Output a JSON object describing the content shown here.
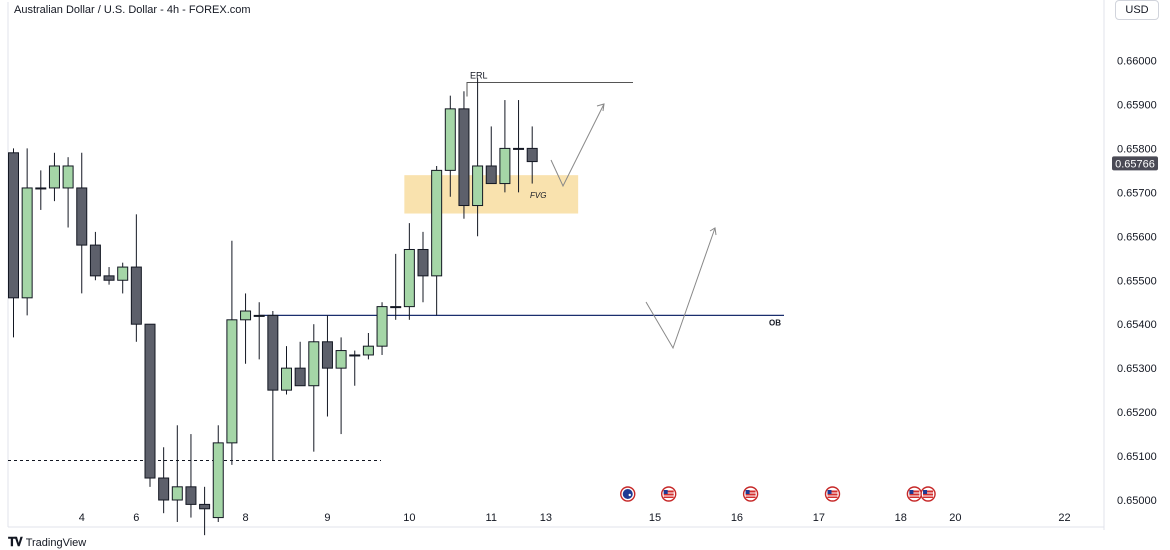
{
  "header": {
    "title": "Australian Dollar / U.S. Dollar - 4h - FOREX.com"
  },
  "currency": {
    "label": "USD"
  },
  "footer": {
    "brand": "TradingView",
    "logo_icon": "tradingview-logo-icon"
  },
  "chart_data": {
    "type": "candlestick",
    "symbol": "Australian Dollar / U.S. Dollar",
    "timeframe": "4h",
    "ylim": [
      0.6496,
      0.6617
    ],
    "yticks": [
      {
        "v": 0.66,
        "label": "0.66000"
      },
      {
        "v": 0.659,
        "label": "0.65900"
      },
      {
        "v": 0.658,
        "label": "0.65800"
      },
      {
        "v": 0.657,
        "label": "0.65700"
      },
      {
        "v": 0.656,
        "label": "0.65600"
      },
      {
        "v": 0.655,
        "label": "0.65500"
      },
      {
        "v": 0.654,
        "label": "0.65400"
      },
      {
        "v": 0.653,
        "label": "0.65300"
      },
      {
        "v": 0.652,
        "label": "0.65200"
      },
      {
        "v": 0.651,
        "label": "0.65100"
      },
      {
        "v": 0.65,
        "label": "0.65000"
      }
    ],
    "xticks": [
      {
        "i": 5,
        "label": "4"
      },
      {
        "i": 9,
        "label": "6"
      },
      {
        "i": 17,
        "label": "8"
      },
      {
        "i": 23,
        "label": "9"
      },
      {
        "i": 29,
        "label": "10"
      },
      {
        "i": 35,
        "label": "11"
      },
      {
        "i": 39,
        "label": "13"
      },
      {
        "i": 47,
        "label": "15"
      },
      {
        "i": 53,
        "label": "16"
      },
      {
        "i": 59,
        "label": "17"
      },
      {
        "i": 65,
        "label": "18"
      },
      {
        "i": 69,
        "label": "20"
      },
      {
        "i": 77,
        "label": "22"
      }
    ],
    "last_price": {
      "value": 0.65766,
      "label": "0.65766",
      "color": "#4a4a55"
    },
    "colors": {
      "up": "#a5d6a7",
      "down": "#5d606b",
      "outline": "#131722",
      "ob_line": "#1a2e6e",
      "fvg_fill": "#f9e2ae",
      "grid": "#f0f3fa",
      "text": "#131722"
    },
    "candles": [
      {
        "o": 0.6579,
        "h": 0.658,
        "l": 0.6537,
        "c": 0.6546
      },
      {
        "o": 0.6546,
        "h": 0.658,
        "l": 0.6542,
        "c": 0.6571
      },
      {
        "o": 0.6571,
        "h": 0.6575,
        "l": 0.6566,
        "c": 0.6571
      },
      {
        "o": 0.6571,
        "h": 0.6579,
        "l": 0.6568,
        "c": 0.6576
      },
      {
        "o": 0.6571,
        "h": 0.6578,
        "l": 0.6562,
        "c": 0.6576
      },
      {
        "o": 0.6571,
        "h": 0.6579,
        "l": 0.6547,
        "c": 0.6558
      },
      {
        "o": 0.6558,
        "h": 0.6561,
        "l": 0.655,
        "c": 0.6551
      },
      {
        "o": 0.6551,
        "h": 0.6553,
        "l": 0.6549,
        "c": 0.655
      },
      {
        "o": 0.655,
        "h": 0.6554,
        "l": 0.6547,
        "c": 0.6553
      },
      {
        "o": 0.6553,
        "h": 0.6565,
        "l": 0.6536,
        "c": 0.654
      },
      {
        "o": 0.654,
        "h": 0.654,
        "l": 0.6503,
        "c": 0.6505
      },
      {
        "o": 0.6505,
        "h": 0.6512,
        "l": 0.6497,
        "c": 0.65
      },
      {
        "o": 0.65,
        "h": 0.6517,
        "l": 0.6495,
        "c": 0.6503
      },
      {
        "o": 0.6503,
        "h": 0.6515,
        "l": 0.6496,
        "c": 0.6499
      },
      {
        "o": 0.6499,
        "h": 0.6503,
        "l": 0.6492,
        "c": 0.6498
      },
      {
        "o": 0.6496,
        "h": 0.6517,
        "l": 0.6495,
        "c": 0.6513
      },
      {
        "o": 0.6513,
        "h": 0.6559,
        "l": 0.6508,
        "c": 0.6541
      },
      {
        "o": 0.6541,
        "h": 0.6547,
        "l": 0.6531,
        "c": 0.6543
      },
      {
        "o": 0.6542,
        "h": 0.6545,
        "l": 0.6532,
        "c": 0.6542
      },
      {
        "o": 0.6542,
        "h": 0.6543,
        "l": 0.6509,
        "c": 0.6525
      },
      {
        "o": 0.6525,
        "h": 0.6535,
        "l": 0.6524,
        "c": 0.653
      },
      {
        "o": 0.653,
        "h": 0.6536,
        "l": 0.6526,
        "c": 0.6526
      },
      {
        "o": 0.6526,
        "h": 0.654,
        "l": 0.6511,
        "c": 0.6536
      },
      {
        "o": 0.6536,
        "h": 0.6542,
        "l": 0.6519,
        "c": 0.653
      },
      {
        "o": 0.653,
        "h": 0.6537,
        "l": 0.6515,
        "c": 0.6534
      },
      {
        "o": 0.6533,
        "h": 0.6534,
        "l": 0.6526,
        "c": 0.6533
      },
      {
        "o": 0.6533,
        "h": 0.6538,
        "l": 0.6532,
        "c": 0.6535
      },
      {
        "o": 0.6535,
        "h": 0.6545,
        "l": 0.6533,
        "c": 0.6544
      },
      {
        "o": 0.6544,
        "h": 0.6556,
        "l": 0.6541,
        "c": 0.6544
      },
      {
        "o": 0.6544,
        "h": 0.6563,
        "l": 0.6541,
        "c": 0.6557
      },
      {
        "o": 0.6557,
        "h": 0.6561,
        "l": 0.6545,
        "c": 0.6551
      },
      {
        "o": 0.6551,
        "h": 0.6576,
        "l": 0.6542,
        "c": 0.6575
      },
      {
        "o": 0.6575,
        "h": 0.6592,
        "l": 0.6569,
        "c": 0.6589
      },
      {
        "o": 0.6589,
        "h": 0.6593,
        "l": 0.6564,
        "c": 0.6567
      },
      {
        "o": 0.6567,
        "h": 0.6596,
        "l": 0.656,
        "c": 0.6576
      },
      {
        "o": 0.6576,
        "h": 0.6585,
        "l": 0.6572,
        "c": 0.6572
      },
      {
        "o": 0.6572,
        "h": 0.6591,
        "l": 0.657,
        "c": 0.658
      },
      {
        "o": 0.658,
        "h": 0.6591,
        "l": 0.657,
        "c": 0.658
      },
      {
        "o": 0.658,
        "h": 0.6585,
        "l": 0.6572,
        "c": 0.6577
      }
    ],
    "annotations": {
      "erl": {
        "label": "ERL",
        "price": 0.6595,
        "from_i": 32.5,
        "to_i": 45
      },
      "ob": {
        "label": "OB",
        "price": 0.6542,
        "from_i": 18,
        "to_i": 56
      },
      "fvg": {
        "label": "FVG",
        "top": 0.6573,
        "bottom": 0.6567,
        "from_i": 29,
        "to_i": 41
      },
      "dotted_low": {
        "price": 0.6509,
        "from_i": -0.5,
        "to_i": 27
      }
    },
    "event_flags": [
      {
        "i": 45,
        "name": "au-flag-icon"
      },
      {
        "i": 48,
        "name": "us-flag-icon"
      },
      {
        "i": 54,
        "name": "us-flag-icon"
      },
      {
        "i": 60,
        "name": "us-flag-icon"
      },
      {
        "i": 66,
        "name": "us-flag-icon"
      },
      {
        "i": 67,
        "name": "us-flag-icon"
      }
    ]
  }
}
